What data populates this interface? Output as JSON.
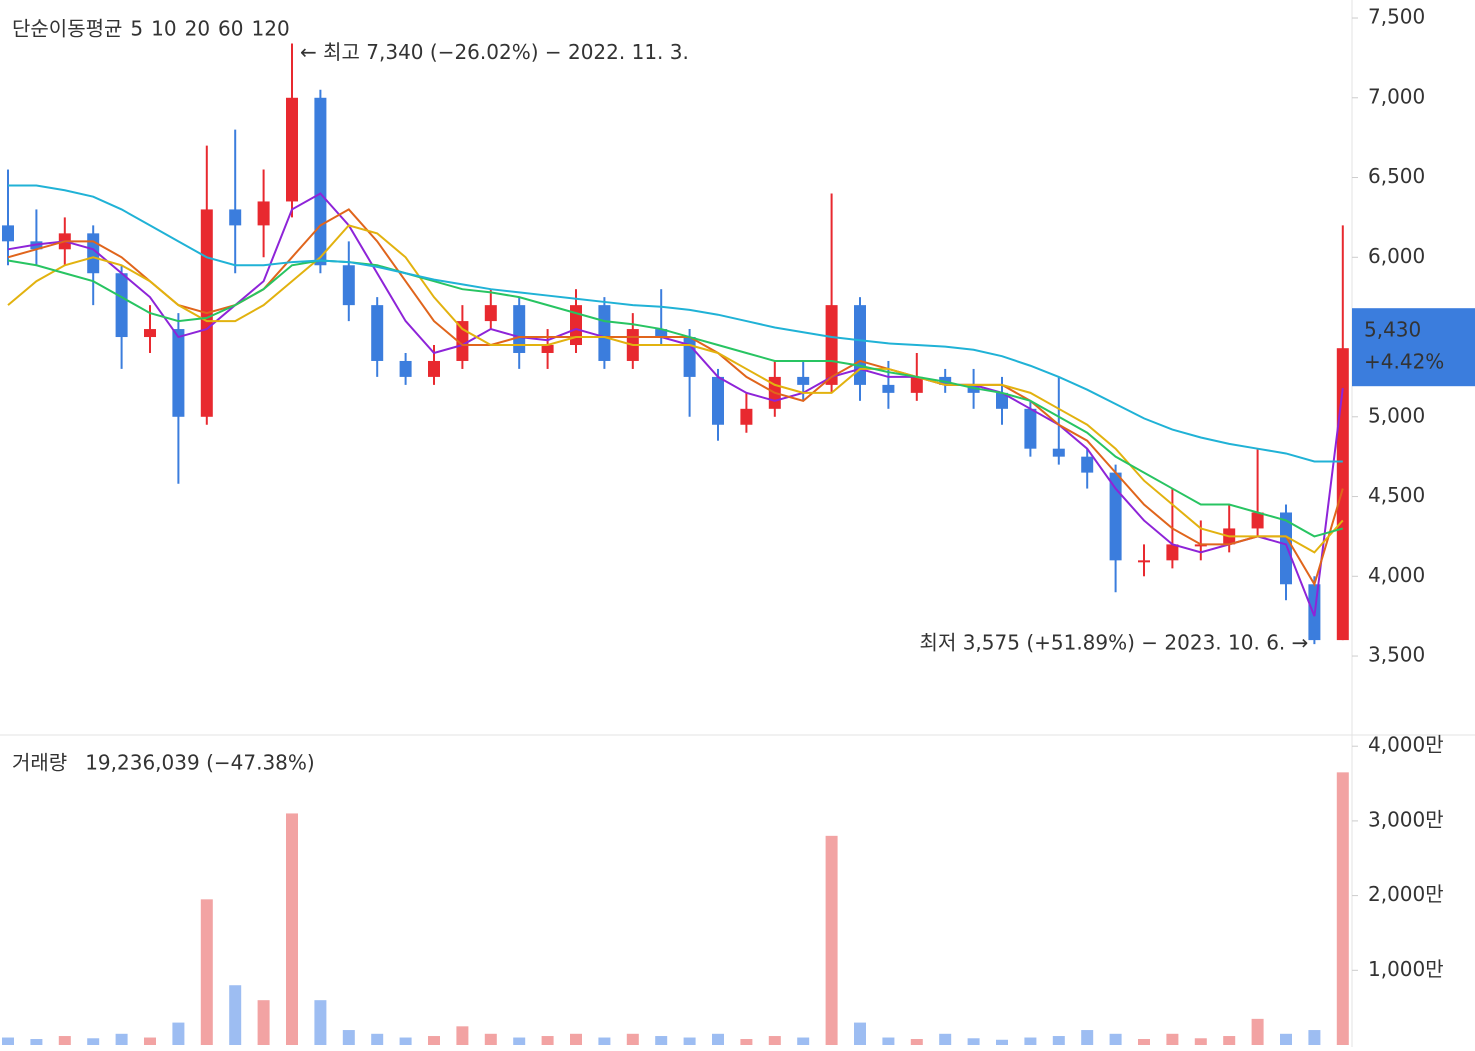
{
  "chart_data": [
    {
      "type": "candlestick",
      "legend_title": "단순이동평균",
      "up_color": "#e8292f",
      "down_color": "#3b7ddd",
      "candles": {
        "open": [
          6200,
          6100,
          6050,
          6150,
          5900,
          5500,
          5550,
          5000,
          6300,
          6200,
          6350,
          7000,
          5950,
          5700,
          5350,
          5250,
          5350,
          5600,
          5700,
          5400,
          5450,
          5700,
          5350,
          5550,
          5500,
          5250,
          4950,
          5050,
          5250,
          5200,
          5700,
          5200,
          5150,
          5250,
          5200,
          5150,
          5050,
          4800,
          4750,
          4650,
          4100,
          4100,
          4200,
          4200,
          4300,
          4400,
          3950,
          3600
        ],
        "high": [
          6550,
          6300,
          6250,
          6200,
          5950,
          5700,
          5650,
          6700,
          6800,
          6550,
          7340,
          7050,
          6100,
          5750,
          5400,
          5450,
          5700,
          5800,
          5750,
          5550,
          5800,
          5750,
          5650,
          5800,
          5550,
          5300,
          5150,
          5350,
          5350,
          6400,
          5750,
          5350,
          5400,
          5300,
          5300,
          5250,
          5100,
          5250,
          4800,
          4700,
          4200,
          4550,
          4350,
          4450,
          4800,
          4450,
          4000,
          6200
        ],
        "low": [
          5950,
          5950,
          5950,
          5700,
          5300,
          5400,
          4580,
          4950,
          5900,
          6000,
          6250,
          5900,
          5600,
          5250,
          5200,
          5200,
          5300,
          5550,
          5300,
          5300,
          5400,
          5300,
          5300,
          5450,
          5000,
          4850,
          4900,
          5000,
          5100,
          5150,
          5100,
          5050,
          5100,
          5150,
          5050,
          4950,
          4750,
          4700,
          4550,
          3900,
          4000,
          4050,
          4100,
          4150,
          4250,
          3850,
          3575,
          3600
        ],
        "close": [
          6100,
          6050,
          6150,
          5900,
          5500,
          5550,
          5000,
          6300,
          6200,
          6350,
          7000,
          5950,
          5700,
          5350,
          5250,
          5350,
          5600,
          5700,
          5400,
          5450,
          5700,
          5350,
          5550,
          5500,
          5250,
          4950,
          5050,
          5250,
          5200,
          5700,
          5200,
          5150,
          5250,
          5200,
          5150,
          5050,
          4800,
          4750,
          4650,
          4100,
          4100,
          4200,
          4200,
          4300,
          4400,
          3950,
          3600,
          5430
        ]
      },
      "series": [
        {
          "name": "5",
          "color": "#8e24d8",
          "values": [
            6050,
            6080,
            6100,
            6050,
            5900,
            5750,
            5500,
            5550,
            5700,
            5850,
            6300,
            6400,
            6200,
            5900,
            5600,
            5400,
            5450,
            5550,
            5500,
            5480,
            5550,
            5500,
            5500,
            5500,
            5450,
            5250,
            5150,
            5100,
            5150,
            5250,
            5300,
            5250,
            5250,
            5200,
            5200,
            5150,
            5050,
            4950,
            4800,
            4550,
            4350,
            4200,
            4150,
            4200,
            4250,
            4200,
            3750,
            5180
          ]
        },
        {
          "name": "10",
          "color": "#e0651c",
          "values": [
            6000,
            6050,
            6100,
            6100,
            6000,
            5850,
            5700,
            5650,
            5700,
            5800,
            6000,
            6200,
            6300,
            6100,
            5850,
            5600,
            5450,
            5450,
            5500,
            5500,
            5500,
            5500,
            5500,
            5500,
            5500,
            5400,
            5250,
            5150,
            5100,
            5250,
            5350,
            5300,
            5250,
            5200,
            5200,
            5200,
            5100,
            4950,
            4850,
            4650,
            4450,
            4300,
            4200,
            4200,
            4250,
            4250,
            3950,
            4550
          ]
        },
        {
          "name": "20",
          "color": "#e2b20f",
          "values": [
            5700,
            5850,
            5950,
            6000,
            5950,
            5850,
            5700,
            5600,
            5600,
            5700,
            5850,
            6000,
            6200,
            6150,
            6000,
            5750,
            5550,
            5450,
            5450,
            5450,
            5500,
            5500,
            5450,
            5450,
            5450,
            5400,
            5300,
            5200,
            5150,
            5150,
            5300,
            5300,
            5250,
            5200,
            5200,
            5200,
            5150,
            5050,
            4950,
            4800,
            4600,
            4450,
            4300,
            4250,
            4250,
            4250,
            4150,
            4350
          ]
        },
        {
          "name": "60",
          "color": "#28c462",
          "values": [
            5980,
            5950,
            5900,
            5850,
            5750,
            5650,
            5600,
            5620,
            5700,
            5800,
            5950,
            5980,
            5970,
            5950,
            5900,
            5850,
            5800,
            5780,
            5750,
            5700,
            5650,
            5600,
            5580,
            5550,
            5500,
            5450,
            5400,
            5350,
            5350,
            5350,
            5320,
            5280,
            5250,
            5220,
            5180,
            5150,
            5100,
            5000,
            4900,
            4750,
            4650,
            4550,
            4450,
            4450,
            4400,
            4350,
            4250,
            4300
          ]
        },
        {
          "name": "120",
          "color": "#20b2d6",
          "values": [
            6450,
            6450,
            6420,
            6380,
            6300,
            6200,
            6100,
            6000,
            5950,
            5950,
            5970,
            5980,
            5970,
            5940,
            5900,
            5860,
            5830,
            5800,
            5780,
            5760,
            5740,
            5720,
            5700,
            5690,
            5670,
            5640,
            5600,
            5560,
            5530,
            5500,
            5480,
            5460,
            5450,
            5440,
            5420,
            5380,
            5320,
            5250,
            5170,
            5080,
            4990,
            4920,
            4870,
            4830,
            4800,
            4770,
            4720,
            4720
          ]
        }
      ],
      "ylim": [
        3005,
        7613
      ],
      "yticks": [
        {
          "value": 3500,
          "label": "3,500"
        },
        {
          "value": 4000,
          "label": "4,000"
        },
        {
          "value": 4500,
          "label": "4,500"
        },
        {
          "value": 5000,
          "label": "5,000"
        },
        {
          "value": 5500,
          "label": "5,500"
        },
        {
          "value": 6000,
          "label": "6,000"
        },
        {
          "value": 6500,
          "label": "6,500"
        },
        {
          "value": 7000,
          "label": "7,000"
        },
        {
          "value": 7500,
          "label": "7,500"
        }
      ],
      "annotations": [
        {
          "text": "← 최고 7,340 (−26.02%) − 2022. 11. 3.",
          "color": "#e8292f"
        },
        {
          "text": "최저 3,575 (+51.89%) − 2023. 10. 6. →",
          "color": "#3b7ddd"
        }
      ],
      "last_price": {
        "value": 5430,
        "label": "5,430"
      },
      "change": "+4.42%",
      "last_color": "#3b7ddd"
    },
    {
      "type": "bar",
      "title": "거래량",
      "subtitle": "19,236,039 (−47.38%)",
      "subtitle_color": "#3b7ddd",
      "up_color": "#f2a3a3",
      "down_color": "#9dbdf2",
      "values": [
        1000000,
        800000,
        1200000,
        900000,
        1500000,
        1000000,
        3000000,
        19500000,
        8000000,
        6000000,
        31000000,
        6000000,
        2000000,
        1500000,
        1000000,
        1200000,
        2500000,
        1500000,
        1000000,
        1200000,
        1500000,
        1000000,
        1500000,
        1200000,
        1000000,
        1500000,
        800000,
        1200000,
        1000000,
        28000000,
        3000000,
        1000000,
        800000,
        1500000,
        900000,
        700000,
        1000000,
        1200000,
        2000000,
        1500000,
        800000,
        1500000,
        900000,
        1200000,
        3500000,
        1500000,
        2000000,
        36500000
      ],
      "ylim": [
        0,
        41500000
      ],
      "yticks": [
        {
          "value": 10000000,
          "label": "1,000만"
        },
        {
          "value": 20000000,
          "label": "2,000만"
        },
        {
          "value": 30000000,
          "label": "3,000만"
        },
        {
          "value": 40000000,
          "label": "4,000만"
        }
      ]
    }
  ]
}
